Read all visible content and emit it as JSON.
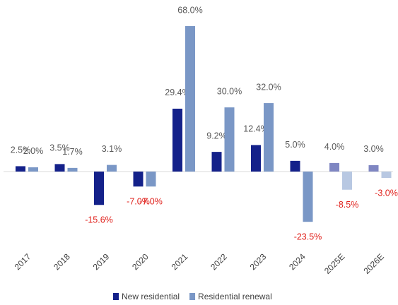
{
  "chart_data": {
    "type": "bar",
    "categories": [
      "2017",
      "2018",
      "2019",
      "2020",
      "2021",
      "2022",
      "2023",
      "2024",
      "2025E",
      "2026E"
    ],
    "series": [
      {
        "name": "New residential",
        "color": "#14218a",
        "colors": [
          "#14218a",
          "#14218a",
          "#14218a",
          "#14218a",
          "#14218a",
          "#14218a",
          "#14218a",
          "#14218a",
          "#7f86c2",
          "#7f86c2"
        ],
        "values": [
          2.5,
          3.5,
          -15.6,
          -7.0,
          29.4,
          9.2,
          12.4,
          5.0,
          4.0,
          3.0
        ],
        "value_labels": [
          "2.5%",
          "3.5%",
          "-15.6%",
          "-7.0%",
          "29.4%",
          "9.2%",
          "12.4%",
          "5.0%",
          "4.0%",
          "3.0%"
        ]
      },
      {
        "name": "Residential renewal",
        "color": "#7a97c6",
        "colors": [
          "#7a97c6",
          "#7a97c6",
          "#7a97c6",
          "#7a97c6",
          "#7a97c6",
          "#7a97c6",
          "#7a97c6",
          "#7a97c6",
          "#b8c8e2",
          "#b8c8e2"
        ],
        "values": [
          2.0,
          1.7,
          3.1,
          -7.0,
          68.0,
          30.0,
          32.0,
          -23.5,
          -8.5,
          -3.0
        ],
        "value_labels": [
          "2.0%",
          "1.7%",
          "3.1%",
          "-7.0%",
          "68.0%",
          "30.0%",
          "32.0%",
          "-23.5%",
          "-8.5%",
          "-3.0%"
        ]
      }
    ],
    "label_color": "#595959",
    "negative_label_color": "#e0201b",
    "legend": "bottom"
  }
}
